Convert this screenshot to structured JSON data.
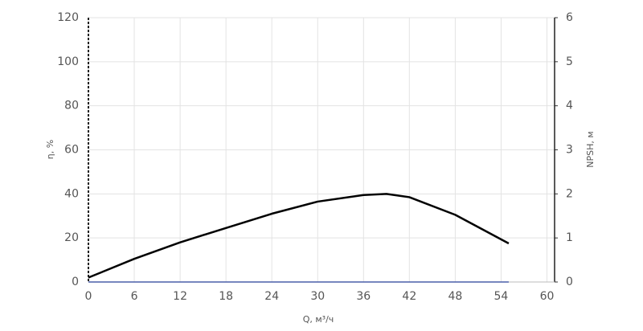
{
  "chart_data": {
    "type": "line",
    "x_label": "Q, м³/ч",
    "y_label": "η, %",
    "y2_label": "NPSH, м",
    "x": [
      0,
      6,
      12,
      18,
      24,
      30,
      36,
      39,
      42,
      48,
      55
    ],
    "series": [
      {
        "color": "#000000",
        "values": [
          2,
          10.5,
          18,
          24.5,
          31,
          36.5,
          39.5,
          40,
          38.5,
          30.5,
          17.5
        ]
      },
      {
        "color": "#4a5fa8",
        "axis": "y2",
        "values": [
          0,
          0,
          0,
          0,
          0,
          0,
          0,
          0,
          0,
          0,
          0
        ]
      }
    ],
    "xlim": [
      0,
      61
    ],
    "xticks": [
      0,
      6,
      12,
      18,
      24,
      30,
      36,
      42,
      48,
      54,
      60
    ],
    "ylim": [
      0,
      120
    ],
    "yticks": [
      0,
      20,
      40,
      60,
      80,
      100,
      120
    ],
    "y2lim": [
      0,
      6
    ],
    "y2ticks": [
      0,
      1,
      2,
      3,
      4,
      5,
      6
    ],
    "grid": true
  }
}
